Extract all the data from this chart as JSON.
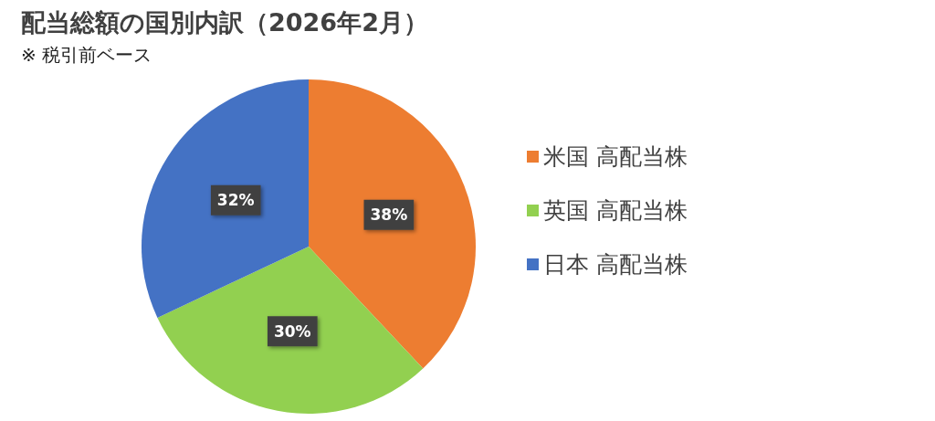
{
  "chart_data": {
    "type": "pie",
    "title": "配当総額の国別内訳（2026年2月）",
    "subtitle": "※ 税引前ベース",
    "categories": [
      "米国 高配当株",
      "英国 高配当株",
      "日本 高配当株"
    ],
    "values": [
      38,
      30,
      32
    ],
    "value_labels": [
      "38%",
      "30%",
      "32%"
    ],
    "colors": [
      "#ed7d31",
      "#92d050",
      "#4472c4"
    ],
    "legend": "right"
  }
}
